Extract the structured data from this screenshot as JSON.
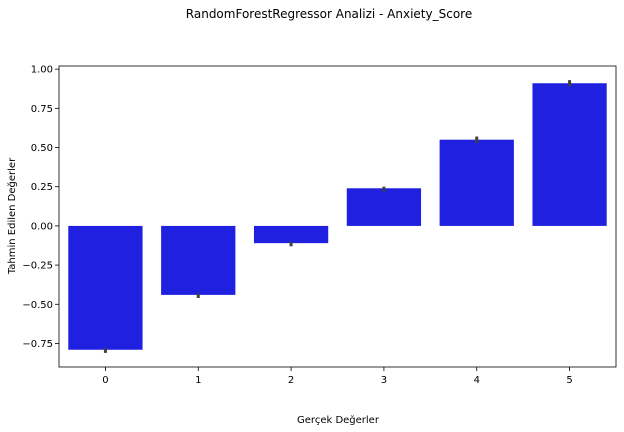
{
  "chart_data": {
    "type": "bar",
    "title": "RandomForestRegressor Analizi - Anxiety_Score",
    "xlabel": "Gerçek Değerler",
    "ylabel": "Tahmin Edilen Değerler",
    "categories": [
      "0",
      "1",
      "2",
      "3",
      "4",
      "5"
    ],
    "values": [
      -0.79,
      -0.44,
      -0.11,
      0.24,
      0.55,
      0.91
    ],
    "error_low": [
      -0.81,
      -0.46,
      -0.13,
      0.22,
      0.53,
      0.89
    ],
    "error_high": [
      -0.78,
      -0.43,
      -0.1,
      0.25,
      0.57,
      0.93
    ],
    "ylim": [
      -0.9,
      1.02
    ],
    "yticks": [
      -0.75,
      -0.5,
      -0.25,
      0.0,
      0.25,
      0.5,
      0.75,
      1.0
    ],
    "ytick_labels": [
      "−0.75",
      "−0.50",
      "−0.25",
      "0.00",
      "0.25",
      "0.50",
      "0.75",
      "1.00"
    ],
    "grid": false,
    "bar_color": "#2020e0",
    "error_color": "#404040"
  }
}
